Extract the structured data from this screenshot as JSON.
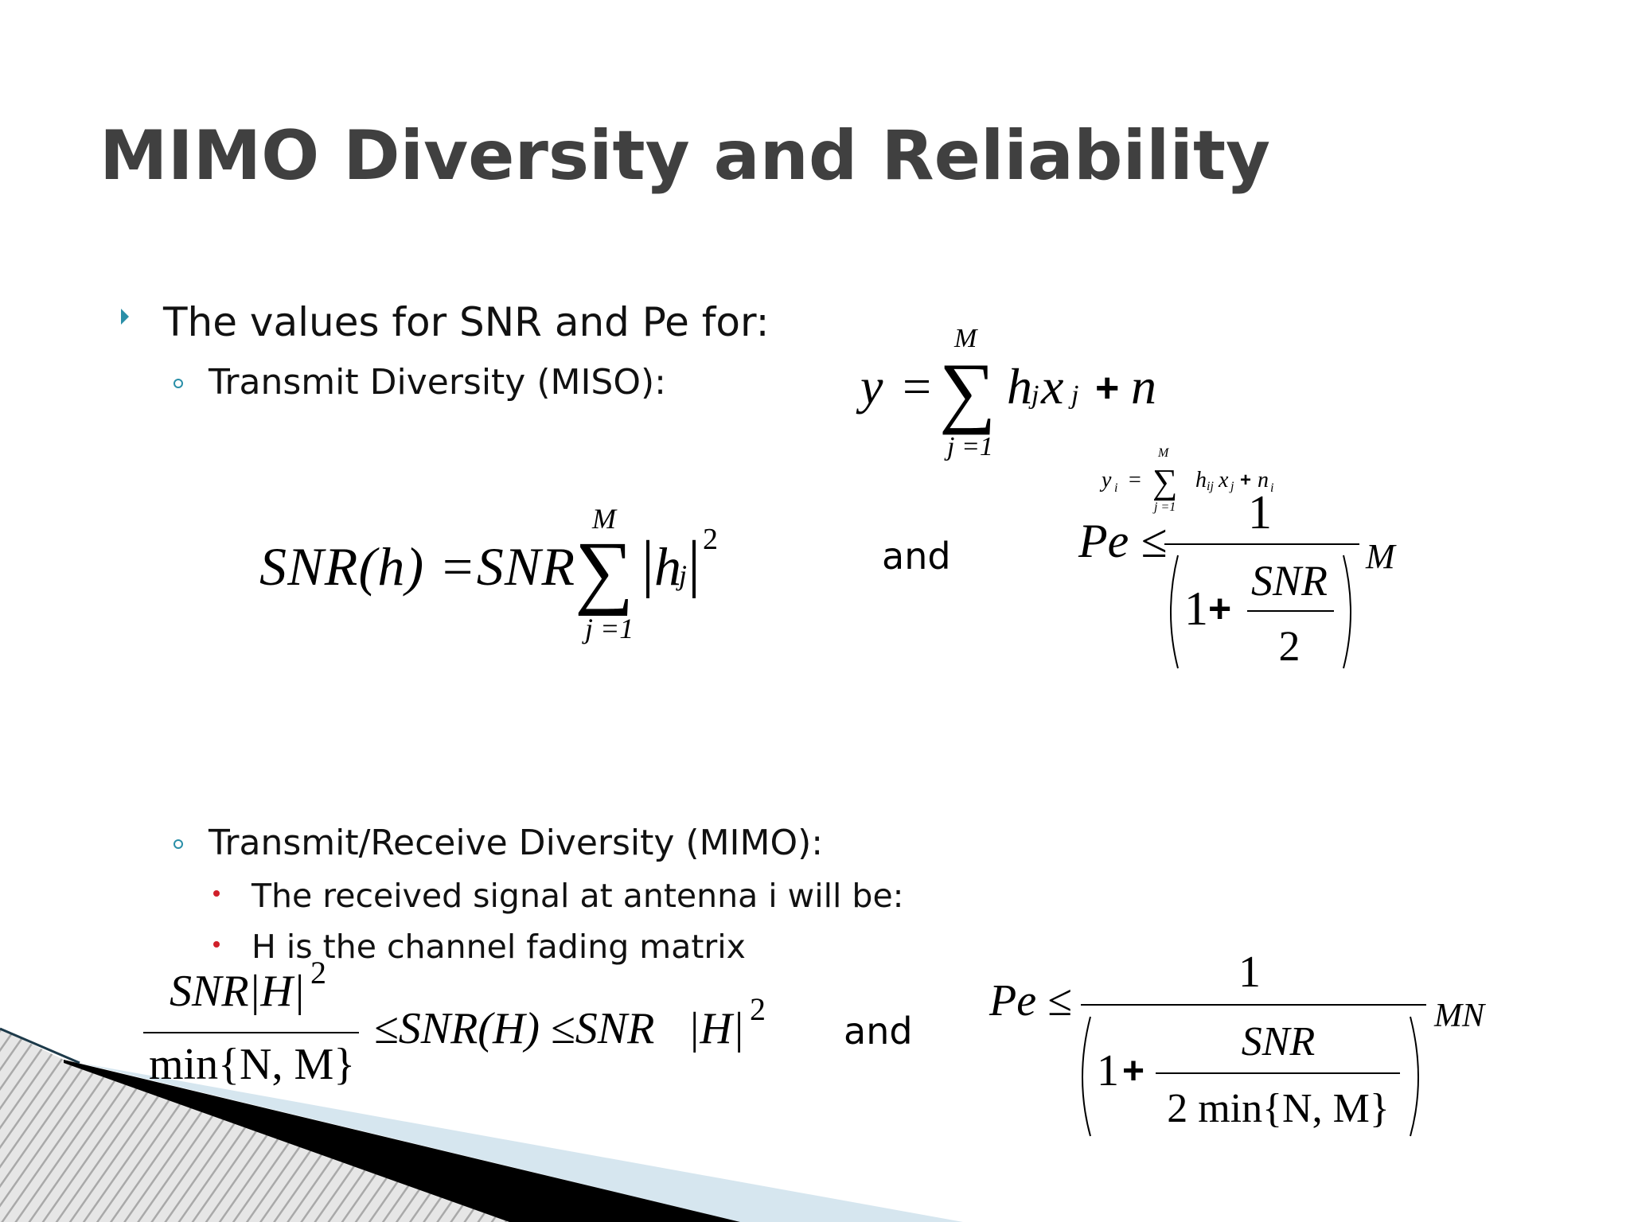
{
  "title": "MIMO Diversity and Reliability",
  "bullets": {
    "main": "The values for SNR and Pe for:",
    "miso": "Transmit Diversity (MISO):",
    "mimo": "Transmit/Receive Diversity (MIMO):",
    "received": "The received signal at antenna i will be:",
    "fading": "H is the channel fading matrix"
  },
  "equations": {
    "miso_output": [
      "y",
      "=",
      "∑",
      "M",
      "j =1",
      "h",
      "j",
      "x",
      "j",
      "+",
      "n"
    ],
    "mimo_output": [
      "y",
      "i",
      "=",
      "∑",
      "M",
      "j =1",
      "h",
      "ij",
      "x",
      "j",
      "+",
      "n",
      "i"
    ],
    "snr_miso": [
      "SNR(h) =SNR",
      "∑",
      "M",
      "j =1",
      "|",
      "h",
      "j",
      "|",
      "2"
    ],
    "pe_miso": [
      "Pe ≤",
      "1",
      "1",
      "+",
      "SNR",
      "2",
      "M"
    ],
    "snr_mimo": [
      "SNR",
      "|H|",
      "2",
      "min{N, M}",
      "≤SNR(H) ≤SNR",
      "|H|",
      "2"
    ],
    "pe_mimo": [
      "Pe ≤",
      "1",
      "1",
      "+",
      "SNR",
      "2 min{N, M}",
      "MN"
    ],
    "and_1": "and",
    "and_2": "and"
  }
}
